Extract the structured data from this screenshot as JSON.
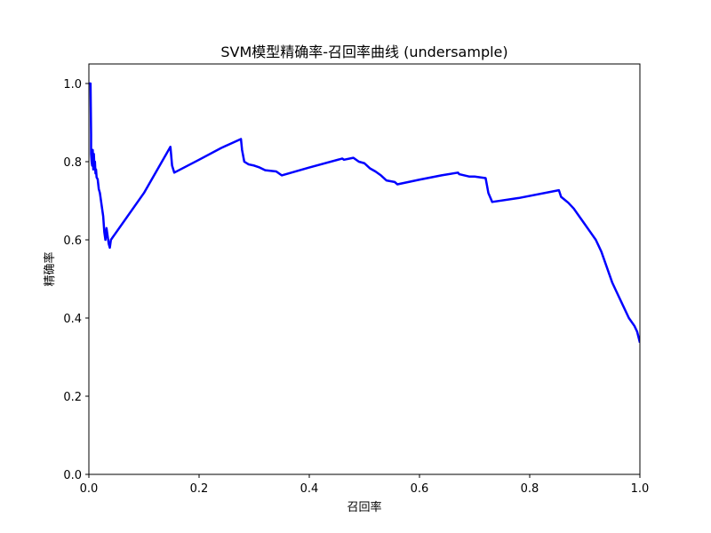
{
  "chart_data": {
    "type": "line",
    "title": "SVM模型精确率-召回率曲线 (undersample)",
    "xlabel": "召回率",
    "ylabel": "精确率",
    "xlim": [
      0.0,
      1.0
    ],
    "ylim": [
      0.0,
      1.05
    ],
    "xticks": [
      "0.0",
      "0.2",
      "0.4",
      "0.6",
      "0.8",
      "1.0"
    ],
    "yticks": [
      "0.0",
      "0.2",
      "0.4",
      "0.6",
      "0.8",
      "1.0"
    ],
    "grid": false,
    "legend": "none",
    "line_color": "#0000ff",
    "series": [
      {
        "x": [
          0.0,
          0.003,
          0.004,
          0.004,
          0.005,
          0.006,
          0.007,
          0.008,
          0.009,
          0.01,
          0.011,
          0.012,
          0.013,
          0.014,
          0.016,
          0.018,
          0.02,
          0.024,
          0.026,
          0.028,
          0.03,
          0.032,
          0.034,
          0.036,
          0.038,
          0.04,
          0.1,
          0.148,
          0.151,
          0.155,
          0.2,
          0.24,
          0.276,
          0.278,
          0.282,
          0.29,
          0.3,
          0.31,
          0.32,
          0.34,
          0.35,
          0.4,
          0.46,
          0.463,
          0.48,
          0.49,
          0.5,
          0.51,
          0.52,
          0.53,
          0.54,
          0.555,
          0.56,
          0.6,
          0.64,
          0.67,
          0.672,
          0.69,
          0.7,
          0.72,
          0.725,
          0.732,
          0.78,
          0.853,
          0.857,
          0.87,
          0.88,
          0.89,
          0.9,
          0.91,
          0.92,
          0.93,
          0.94,
          0.95,
          0.96,
          0.97,
          0.98,
          0.99,
          0.995,
          1.0
        ],
        "y": [
          1.0,
          1.0,
          0.87,
          0.82,
          0.8,
          0.79,
          0.83,
          0.78,
          0.82,
          0.79,
          0.8,
          0.77,
          0.78,
          0.76,
          0.755,
          0.73,
          0.72,
          0.68,
          0.66,
          0.62,
          0.6,
          0.63,
          0.61,
          0.59,
          0.58,
          0.6,
          0.72,
          0.838,
          0.79,
          0.772,
          0.805,
          0.835,
          0.858,
          0.83,
          0.8,
          0.793,
          0.79,
          0.785,
          0.778,
          0.775,
          0.765,
          0.785,
          0.808,
          0.805,
          0.81,
          0.8,
          0.796,
          0.783,
          0.775,
          0.765,
          0.752,
          0.748,
          0.742,
          0.754,
          0.765,
          0.772,
          0.768,
          0.762,
          0.762,
          0.758,
          0.72,
          0.697,
          0.707,
          0.727,
          0.71,
          0.695,
          0.68,
          0.66,
          0.64,
          0.62,
          0.6,
          0.57,
          0.53,
          0.49,
          0.46,
          0.43,
          0.4,
          0.38,
          0.365,
          0.337
        ]
      }
    ]
  }
}
